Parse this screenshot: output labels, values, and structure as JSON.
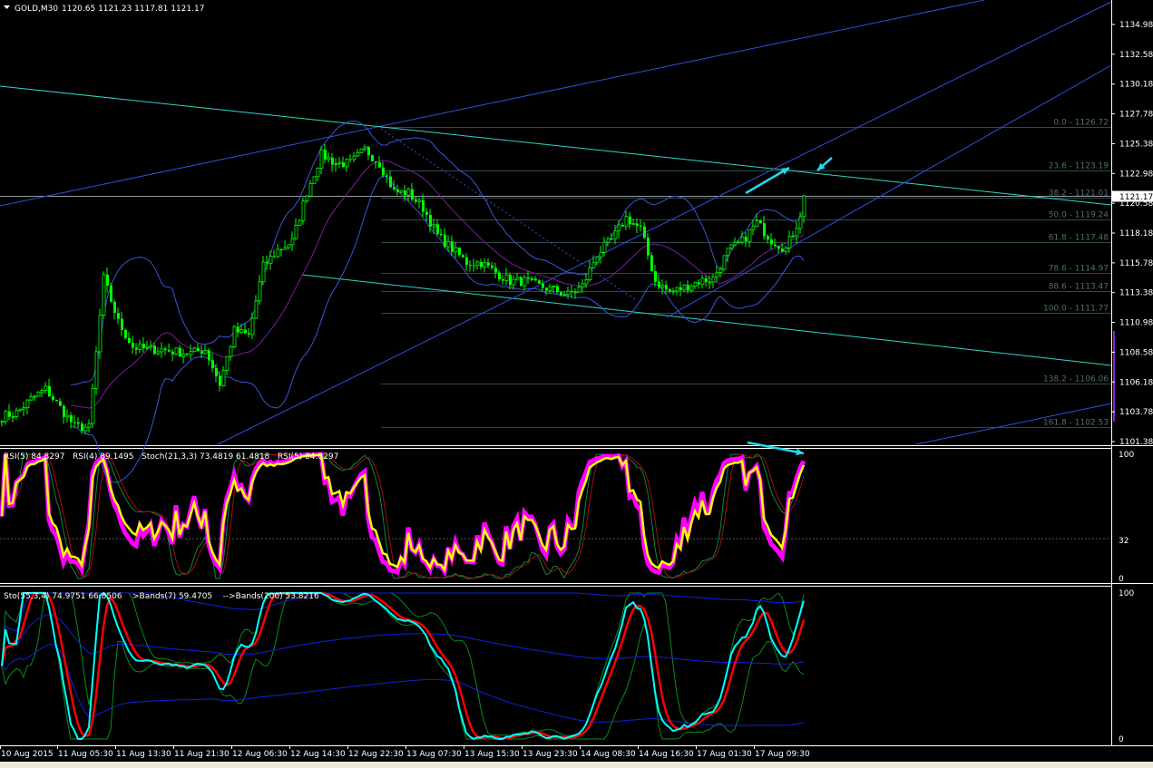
{
  "window": {
    "symbol_timeframe": "GOLD,M30",
    "ohlc": "1120.65 1121.23 1117.81 1121.17",
    "menu_icon": "triangle-down-icon"
  },
  "colors": {
    "background": "#000000",
    "candle": "#00ff00",
    "bollinger": "#3a56d8",
    "trend_teal": "#2fd6c8",
    "trend_blue": "#3050e0",
    "fib": "#4f6f6f",
    "arrow": "#22d8ee",
    "rsi_main": "#ffff00",
    "rsi_outline": "#ff00ff",
    "stoch_main": "#00ffff",
    "stoch_signal": "#ff0000"
  },
  "price_axis": {
    "ticks": [
      "1134.98",
      "1132.58",
      "1130.18",
      "1127.78",
      "1125.38",
      "1122.98",
      "1120.58",
      "1118.18",
      "1115.78",
      "1113.38",
      "1110.98",
      "1108.58",
      "1106.18",
      "1103.78",
      "1101.38"
    ],
    "current_price": "1121.17"
  },
  "fibonacci": [
    {
      "label": "0.0 - 1126.72",
      "price": 1126.72
    },
    {
      "label": "23.6 - 1123.19",
      "price": 1123.19
    },
    {
      "label": "38.2 - 1121.01",
      "price": 1121.01
    },
    {
      "label": "50.0 - 1119.24",
      "price": 1119.24
    },
    {
      "label": "61.8 - 1117.48",
      "price": 1117.48
    },
    {
      "label": "78.6 - 1114.97",
      "price": 1114.97
    },
    {
      "label": "88.6 - 1113.47",
      "price": 1113.47
    },
    {
      "label": "100.0 - 1111.77",
      "price": 1111.77
    },
    {
      "label": "138.2 - 1106.06",
      "price": 1106.06
    },
    {
      "label": "161.8 - 1102.53",
      "price": 1102.53
    }
  ],
  "chart_data": {
    "type": "candlestick",
    "timeframe": "M30",
    "approx_close_every_2h": [
      1103.4,
      1103.7,
      1104.8,
      1105.6,
      1104.1,
      1102.6,
      1102.5,
      1114.5,
      1111.0,
      1109.0,
      1108.8,
      1108.8,
      1108.6,
      1108.5,
      1108.8,
      1106.0,
      1110.3,
      1109.9,
      1115.5,
      1116.8,
      1117.5,
      1121.5,
      1124.5,
      1123.8,
      1123.8,
      1124.9,
      1123.8,
      1121.5,
      1121.4,
      1120.2,
      1118.0,
      1116.9,
      1115.8,
      1115.8,
      1115.0,
      1114.3,
      1114.3,
      1113.9,
      1113.6,
      1113.2,
      1113.9,
      1116.5,
      1117.6,
      1119.4,
      1118.5,
      1114.3,
      1113.4,
      1113.8,
      1114.3,
      1114.5,
      1116.7,
      1117.5,
      1119.0,
      1117.6,
      1116.9,
      1119.5
    ],
    "last_close": 1121.17,
    "ylim": [
      1101.38,
      1134.98
    ]
  },
  "rsi_panel": {
    "legend": "RSI(5) 84.8297   RSI(4) 89.1495   Stoch(21,3,3) 73.4819 61.4818   RSI(5) 84.8297",
    "levels": [
      "100",
      "32",
      "0"
    ]
  },
  "stoch_panel": {
    "legend": "Sto(55,3,4) 74.9751 66.8506    >Bands(7) 59.4705    -->Bands(200) 53.8216",
    "levels": [
      "100",
      "0"
    ]
  },
  "time_axis": [
    "10 Aug 2015",
    "11 Aug 05:30",
    "11 Aug 13:30",
    "11 Aug 21:30",
    "12 Aug 06:30",
    "12 Aug 14:30",
    "12 Aug 22:30",
    "13 Aug 07:30",
    "13 Aug 15:30",
    "13 Aug 23:30",
    "14 Aug 08:30",
    "14 Aug 16:30",
    "17 Aug 01:30",
    "17 Aug 09:30"
  ]
}
